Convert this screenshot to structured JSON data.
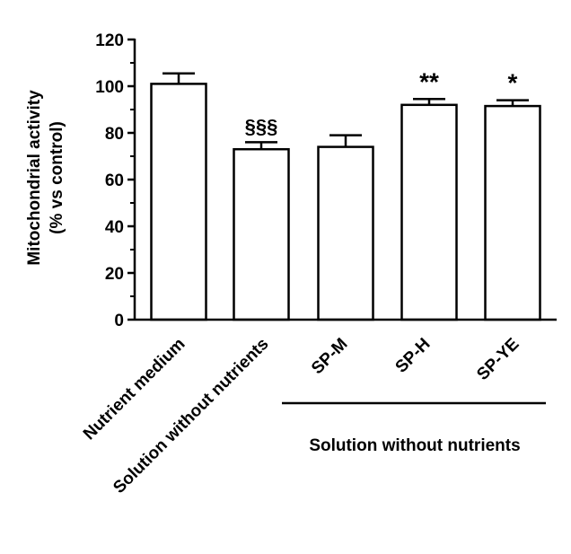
{
  "chart_data": {
    "type": "bar",
    "ylabel": [
      "Mitochondrial activity",
      "(% vs control)"
    ],
    "ylim": [
      0,
      120
    ],
    "yticks": [
      0,
      20,
      40,
      60,
      80,
      100,
      120
    ],
    "categories": [
      "Nutrient medium",
      "Solution without nutrients",
      "SP-M",
      "SP-H",
      "SP-YE"
    ],
    "values": [
      101,
      73,
      74,
      92,
      91.5
    ],
    "errors": [
      4.5,
      3,
      5,
      2.5,
      2.5
    ],
    "annotations": [
      "",
      "§§§",
      "",
      "**",
      "*"
    ],
    "group_label": "Solution without nutrients",
    "bar_color": "#ffffff",
    "edge_color": "#000000",
    "grid": false
  }
}
